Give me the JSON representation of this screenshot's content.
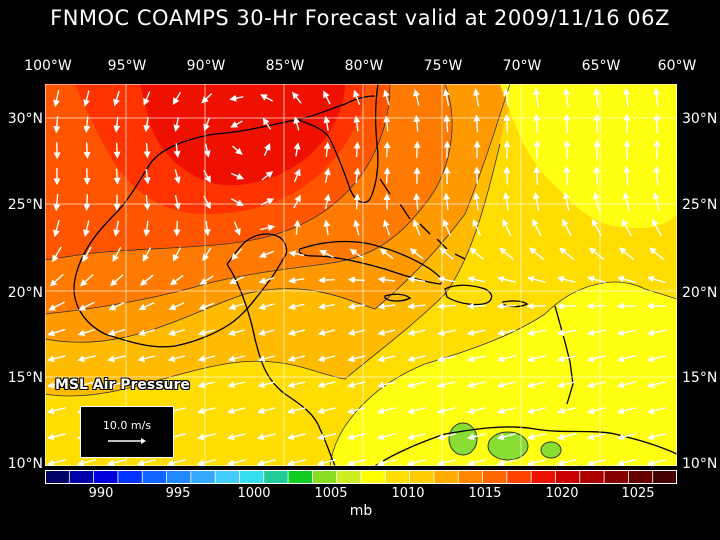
{
  "title": "FNMOC COAMPS 30-Hr Forecast valid at 2009/11/16 06Z",
  "longitude_labels": [
    "100°W",
    "95°W",
    "90°W",
    "85°W",
    "80°W",
    "75°W",
    "70°W",
    "65°W",
    "60°W"
  ],
  "latitude_labels": [
    "30°N",
    "25°N",
    "20°N",
    "15°N",
    "10°N"
  ],
  "product_label": "MSL Air Pressure",
  "reference_vector": {
    "label": "10.0 m/s"
  },
  "colorbar": {
    "unit": "mb",
    "tick_labels": [
      "990",
      "995",
      "1000",
      "1005",
      "1010",
      "1015",
      "1020",
      "1025"
    ],
    "colors": [
      "#000066",
      "#0000aa",
      "#0000dd",
      "#0033ff",
      "#1166ff",
      "#2288ff",
      "#33aaff",
      "#44ccff",
      "#33ddee",
      "#22cc99",
      "#11cc22",
      "#88dd22",
      "#ccee22",
      "#ffff00",
      "#ffdd00",
      "#ffcc00",
      "#ffaa00",
      "#ff8800",
      "#ff6600",
      "#ff4400",
      "#ee1100",
      "#cc0000",
      "#aa0000",
      "#880000",
      "#660000",
      "#440000"
    ]
  },
  "map_colors": {
    "p1009": "#ffff11",
    "p1010": "#ffdd00",
    "p1011": "#ffbb00",
    "p1012": "#ff9900",
    "p1013": "#ff7a00",
    "p1014": "#ff5500",
    "p1015": "#ff3300",
    "p1016": "#ee1100",
    "p1004": "#88dd33",
    "land": "#000000",
    "grid": "#ffffff"
  }
}
